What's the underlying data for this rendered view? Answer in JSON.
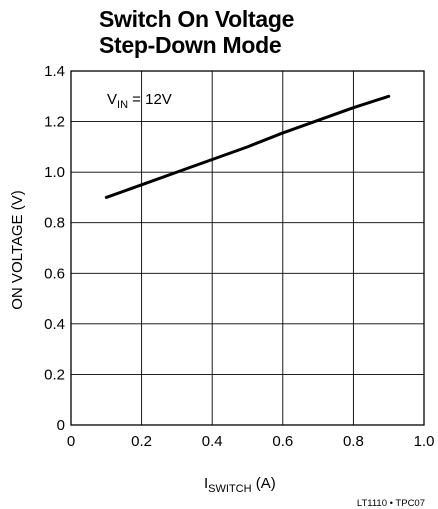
{
  "chart_data": {
    "type": "line",
    "title_line1": "Switch On Voltage",
    "title_line2": "Step-Down Mode",
    "xlabel_main": "I",
    "xlabel_sub": "SWITCH",
    "xlabel_unit": " (A)",
    "ylabel": "ON VOLTAGE (V)",
    "annotation_main": "V",
    "annotation_sub": "IN",
    "annotation_rest": " = 12V",
    "figure_code": "LT1110 • TPC07",
    "xlim": [
      0,
      1.0
    ],
    "ylim": [
      0,
      1.4
    ],
    "x_ticks": [
      "0",
      "0.2",
      "0.4",
      "0.6",
      "0.8",
      "1.0"
    ],
    "y_ticks": [
      "0",
      "0.2",
      "0.4",
      "0.6",
      "0.8",
      "1.0",
      "1.2",
      "1.4"
    ],
    "grid": true,
    "series": [
      {
        "x": [
          0.1,
          0.2,
          0.3,
          0.4,
          0.5,
          0.6,
          0.7,
          0.8,
          0.9
        ],
        "y": [
          0.9,
          0.95,
          1.0,
          1.05,
          1.1,
          1.155,
          1.205,
          1.255,
          1.3
        ]
      }
    ],
    "colors": {
      "line": "#000000",
      "grid": "#000000"
    }
  }
}
